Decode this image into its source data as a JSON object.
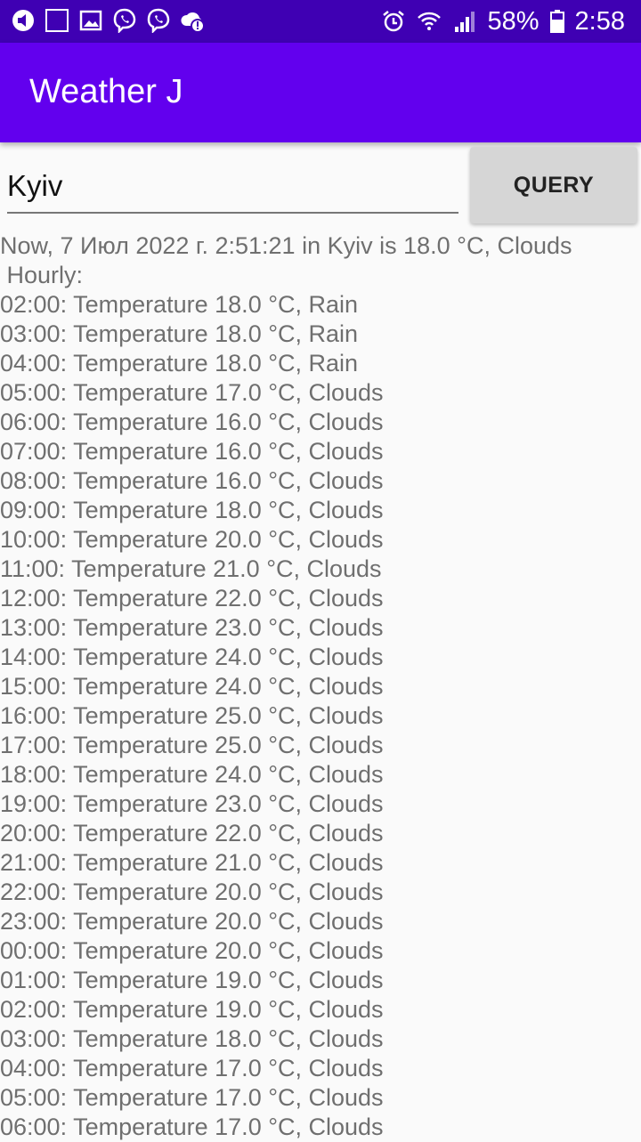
{
  "status_bar": {
    "left_icons": [
      "notification-icon",
      "square-icon",
      "image-icon",
      "viber-icon",
      "viber-icon",
      "cloud-alert-icon"
    ],
    "right_icons": [
      "alarm-icon",
      "wifi-icon",
      "signal-icon"
    ],
    "battery": "58%",
    "time": "2:58"
  },
  "app_bar": {
    "title": "Weather J"
  },
  "query": {
    "city_value": "Kyiv",
    "button_label": "QUERY"
  },
  "result": {
    "now_line": "Now, 7 Июл 2022 г. 2:51:21 in Kyiv is 18.0 °C, Clouds",
    "hourly_label": " Hourly:",
    "hourly": [
      "02:00: Temperature 18.0 °C, Rain",
      "03:00: Temperature 18.0 °C, Rain",
      "04:00: Temperature 18.0 °C, Rain",
      "05:00: Temperature 17.0 °C, Clouds",
      "06:00: Temperature 16.0 °C, Clouds",
      "07:00: Temperature 16.0 °C, Clouds",
      "08:00: Temperature 16.0 °C, Clouds",
      "09:00: Temperature 18.0 °C, Clouds",
      "10:00: Temperature 20.0 °C, Clouds",
      "11:00: Temperature 21.0 °C, Clouds",
      "12:00: Temperature 22.0 °C, Clouds",
      "13:00: Temperature 23.0 °C, Clouds",
      "14:00: Temperature 24.0 °C, Clouds",
      "15:00: Temperature 24.0 °C, Clouds",
      "16:00: Temperature 25.0 °C, Clouds",
      "17:00: Temperature 25.0 °C, Clouds",
      "18:00: Temperature 24.0 °C, Clouds",
      "19:00: Temperature 23.0 °C, Clouds",
      "20:00: Temperature 22.0 °C, Clouds",
      "21:00: Temperature 21.0 °C, Clouds",
      "22:00: Temperature 20.0 °C, Clouds",
      "23:00: Temperature 20.0 °C, Clouds",
      "00:00: Temperature 20.0 °C, Clouds",
      "01:00: Temperature 19.0 °C, Clouds",
      "02:00: Temperature 19.0 °C, Clouds",
      "03:00: Temperature 18.0 °C, Clouds",
      "04:00: Temperature 17.0 °C, Clouds",
      "05:00: Temperature 17.0 °C, Clouds",
      "06:00: Temperature 17.0 °C, Clouds"
    ]
  }
}
